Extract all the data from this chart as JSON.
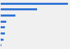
{
  "values": [
    900000,
    490000,
    200000,
    75000,
    60000,
    55000,
    42000,
    12000
  ],
  "bar_color": "#3375d6",
  "background_color": "#f0f0f0",
  "figsize": [
    1.0,
    0.71
  ],
  "dpi": 100,
  "bar_height": 0.35
}
